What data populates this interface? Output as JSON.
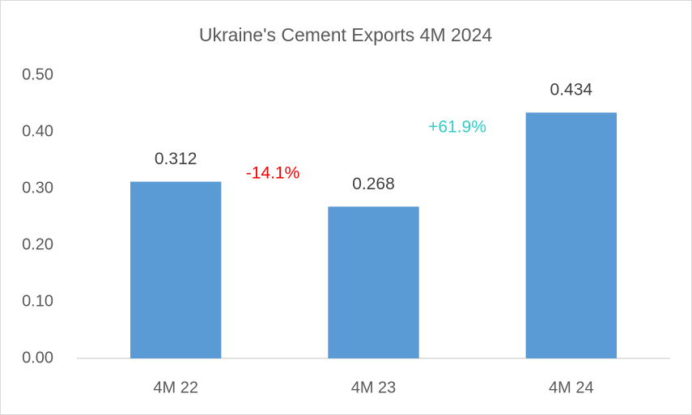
{
  "chart_data": {
    "type": "bar",
    "title": "Ukraine's Cement Exports 4M 2024",
    "categories": [
      "4M 22",
      "4M 23",
      "4M 24"
    ],
    "values": [
      0.312,
      0.268,
      0.434
    ],
    "color": "#5b9bd5",
    "ylim": [
      0,
      0.5
    ],
    "yticks": [
      {
        "value": 0,
        "label": "0.00"
      },
      {
        "value": 0.1,
        "label": "0.10"
      },
      {
        "value": 0.2,
        "label": "0.20"
      },
      {
        "value": 0.3,
        "label": "0.30"
      },
      {
        "value": 0.4,
        "label": "0.40"
      },
      {
        "value": 0.5,
        "label": "0.50"
      }
    ],
    "grid": false,
    "annotations": [
      {
        "text": "-14.1%",
        "color": "#ff0000"
      },
      {
        "text": "+61.9%",
        "color": "#33cccc"
      }
    ]
  }
}
